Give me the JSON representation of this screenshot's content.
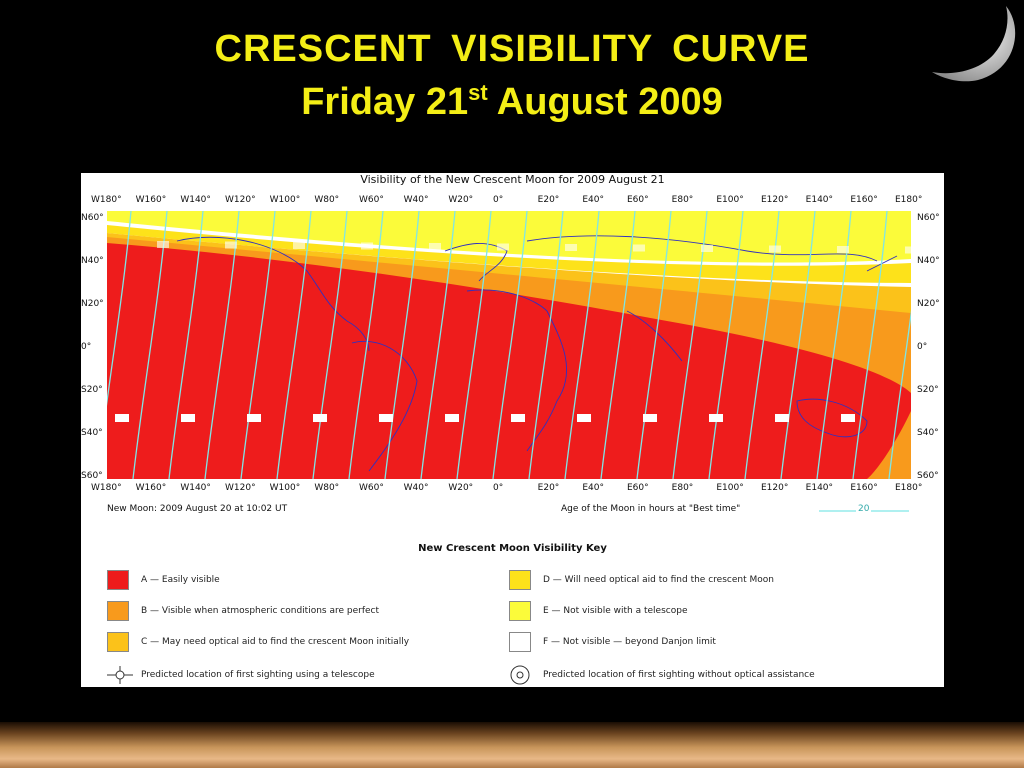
{
  "slide": {
    "title_line1": "CRESCENT  VISIBILITY  CURVE",
    "title_line2_pre": "Friday 21",
    "title_line2_sup": "st",
    "title_line2_post": " August 2009"
  },
  "map": {
    "title": "Visibility of the New Crescent Moon for 2009 August 21",
    "lon_labels": [
      "W180°",
      "W160°",
      "W140°",
      "W120°",
      "W100°",
      "W80°",
      "W60°",
      "W40°",
      "W20°",
      "0°",
      "E20°",
      "E40°",
      "E60°",
      "E80°",
      "E100°",
      "E120°",
      "E140°",
      "E160°",
      "E180°"
    ],
    "lat_labels_left": [
      "N60°",
      "N40°",
      "N20°",
      "0°",
      "S20°",
      "S40°",
      "S60°"
    ],
    "lat_labels_right": [
      "N60°",
      "N40°",
      "N20°",
      "0°",
      "S20°",
      "S40°",
      "S60°"
    ],
    "new_moon_text": "New Moon: 2009 August 20 at 10:02 UT",
    "age_text": "Age of the Moon in hours at \"Best time\"",
    "age_example": "20",
    "colors": {
      "A": "#ee1c1c",
      "B": "#f89a1c",
      "C": "#fbc21a",
      "D": "#fde21a",
      "E": "#fbfb3a",
      "F": "#ffffff",
      "contour": "#7fe6e6",
      "coast": "#3030c0"
    }
  },
  "key": {
    "title": "New Crescent Moon Visibility Key",
    "items": [
      {
        "code": "A",
        "label": "A — Easily visible",
        "color": "#ee1c1c"
      },
      {
        "code": "B",
        "label": "B — Visible when atmospheric conditions are perfect",
        "color": "#f89a1c"
      },
      {
        "code": "C",
        "label": "C — May need optical aid to find the crescent Moon initially",
        "color": "#fbc21a"
      },
      {
        "code": "D",
        "label": "D — Will need optical aid to find the crescent Moon",
        "color": "#fde21a"
      },
      {
        "code": "E",
        "label": "E — Not visible with a telescope",
        "color": "#fbfb3a"
      },
      {
        "code": "F",
        "label": "F — Not visible — beyond Danjon limit",
        "color": "#ffffff"
      }
    ],
    "telescope_label": "Predicted location of first sighting using a telescope",
    "naked_eye_label": "Predicted location of first sighting without optical assistance"
  }
}
